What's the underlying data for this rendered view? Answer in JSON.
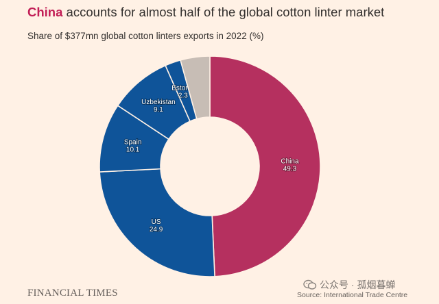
{
  "title": {
    "highlight": "China",
    "rest": " accounts for almost half of the global cotton linter market"
  },
  "subtitle": "Share of $377mn global cotton linters exports in 2022 (%)",
  "brand": "FINANCIAL TIMES",
  "source": "Source: International Trade Centre",
  "watermark": {
    "icon": "wechat-icon",
    "text": "公众号 · 孤烟暮蝉"
  },
  "colors": {
    "background": "#fff1e5",
    "china": "#b5305f",
    "blue": "#0f5499",
    "other": "#c7bdb5",
    "title_highlight": "#c21e56"
  },
  "chart_data": {
    "type": "pie",
    "donut": true,
    "categories": [
      "China",
      "US",
      "Spain",
      "Uzbekistan",
      "Estonia",
      ""
    ],
    "values": [
      49.3,
      24.9,
      10.1,
      9.1,
      2.3,
      4.3
    ],
    "value_labels": [
      "49.3",
      "24.9",
      "10.1",
      "9.1",
      "2.3",
      ""
    ],
    "colors": [
      "#b5305f",
      "#0f5499",
      "#0f5499",
      "#0f5499",
      "#0f5499",
      "#c7bdb5"
    ]
  }
}
